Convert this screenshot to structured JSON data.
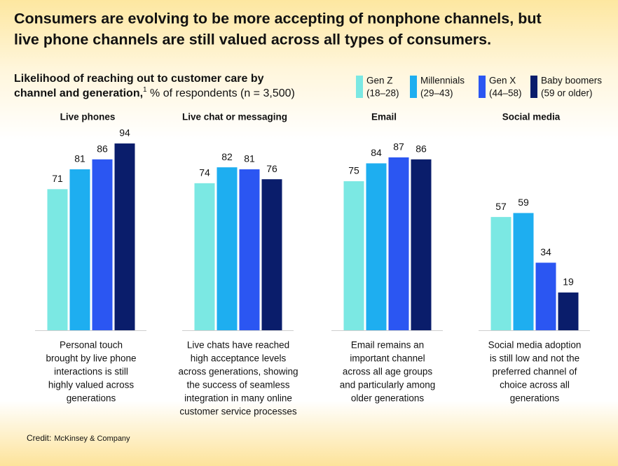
{
  "chart_data": {
    "type": "bar",
    "title": [
      "Consumers are evolving to be more accepting of nonphone channels, but",
      "live phone channels are still valued across all types of consumers."
    ],
    "subtitle_line1": "Likelihood of reaching out to customer care by",
    "subtitle_bold": "channel and generation,",
    "footnote_mark": "1",
    "subtitle_rest": " % of respondents (n = 3,500)",
    "categories": [
      "Live phones",
      "Live chat or messaging",
      "Email",
      "Social media"
    ],
    "series": [
      {
        "name": "Gen Z",
        "age_range": "(18–28)",
        "color": "#7be8e3",
        "values": [
          71,
          74,
          75,
          57
        ]
      },
      {
        "name": "Millennials",
        "age_range": "(29–43)",
        "color": "#1eaef0",
        "values": [
          81,
          82,
          84,
          59
        ]
      },
      {
        "name": "Gen X",
        "age_range": "(44–58)",
        "color": "#2b56f2",
        "values": [
          86,
          81,
          87,
          34
        ]
      },
      {
        "name": "Baby boomers",
        "age_range": "(59 or older)",
        "color": "#0a1d6b",
        "values": [
          94,
          76,
          86,
          19
        ]
      }
    ],
    "ylim": [
      0,
      100
    ],
    "notes": [
      [
        "Personal touch",
        "brought by live phone",
        "interactions is still",
        "highly valued across",
        "generations"
      ],
      [
        "Live chats have reached",
        "high acceptance levels",
        "across generations, showing",
        "the success of seamless",
        "integration in many online",
        "customer service processes"
      ],
      [
        "Email remains an",
        "important channel",
        "across all age groups",
        "and particularly among",
        "older generations"
      ],
      [
        "Social media adoption",
        "is still low and not the",
        "preferred channel of",
        "choice across all",
        "generations"
      ]
    ],
    "credit_label": "Credit:",
    "credit_source": "McKinsey & Company"
  }
}
